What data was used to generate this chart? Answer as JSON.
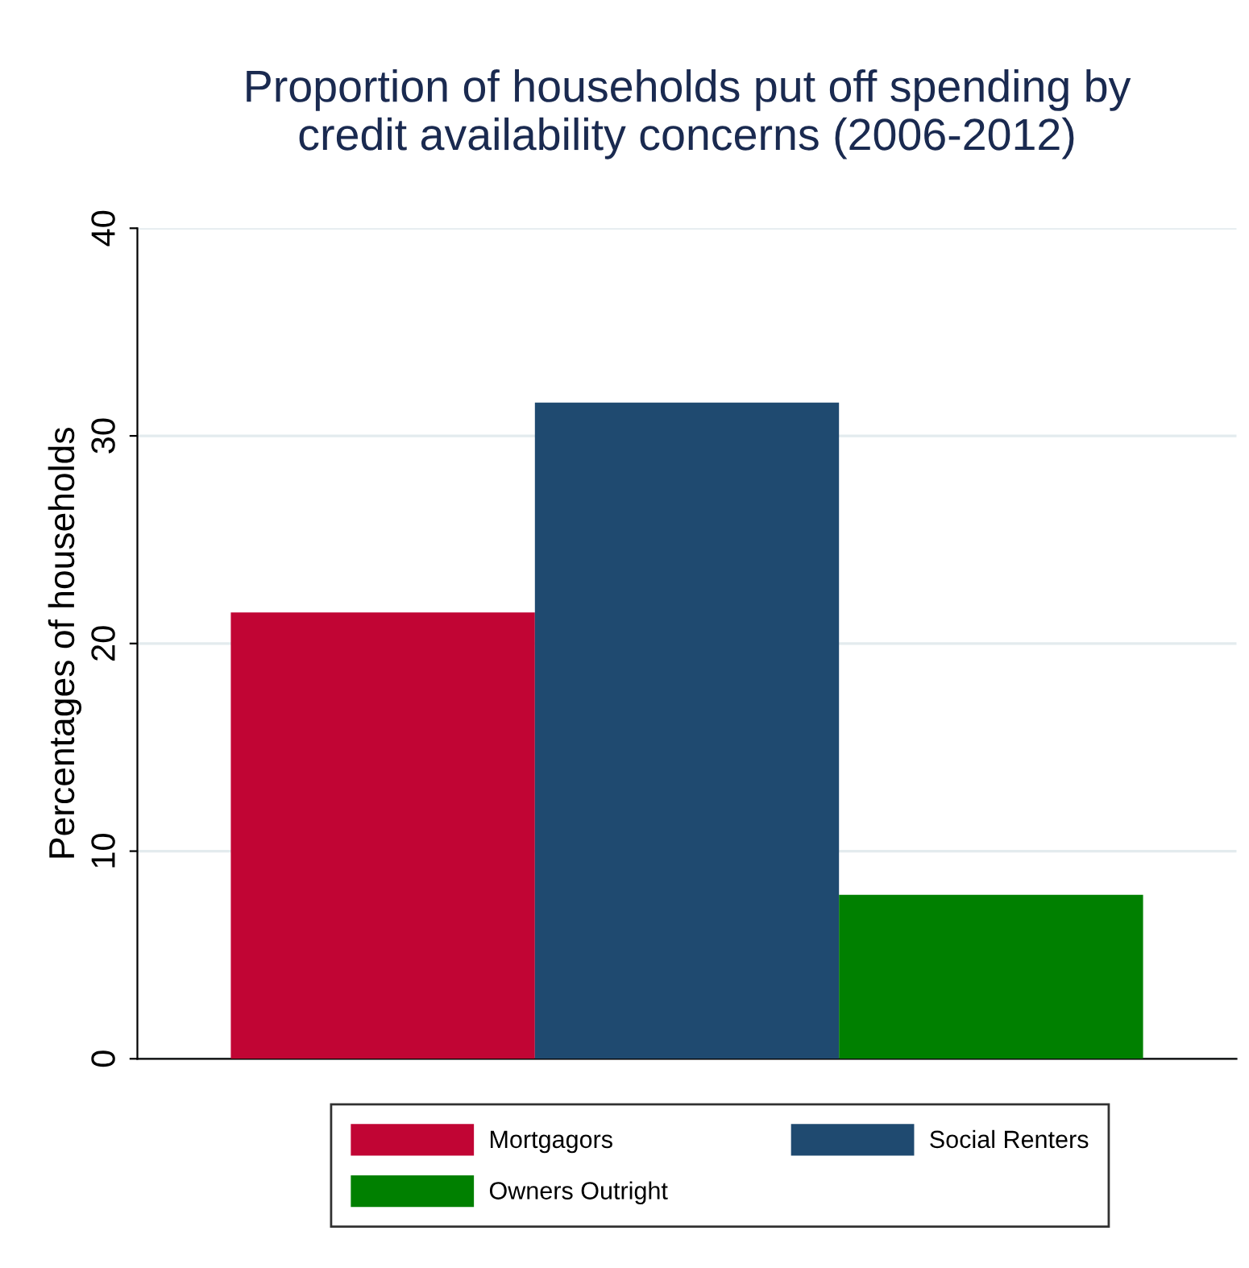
{
  "chart_data": {
    "type": "bar",
    "title": "Proportion of households put off spending by\ncredit availability concerns (2006-2012)",
    "ylabel": "Percentages of households",
    "categories": [
      null
    ],
    "series": [
      {
        "name": "Mortgagors",
        "color": "#c10534",
        "values": [
          21.5
        ]
      },
      {
        "name": "Social Renters",
        "color": "#1f4a70",
        "values": [
          31.6
        ]
      },
      {
        "name": "Owners Outright",
        "color": "#008000",
        "values": [
          7.9
        ]
      }
    ],
    "ylim": [
      0,
      40
    ],
    "yticks": [
      0,
      10,
      20,
      30,
      40
    ],
    "grid": "y",
    "legend": "bottom"
  }
}
